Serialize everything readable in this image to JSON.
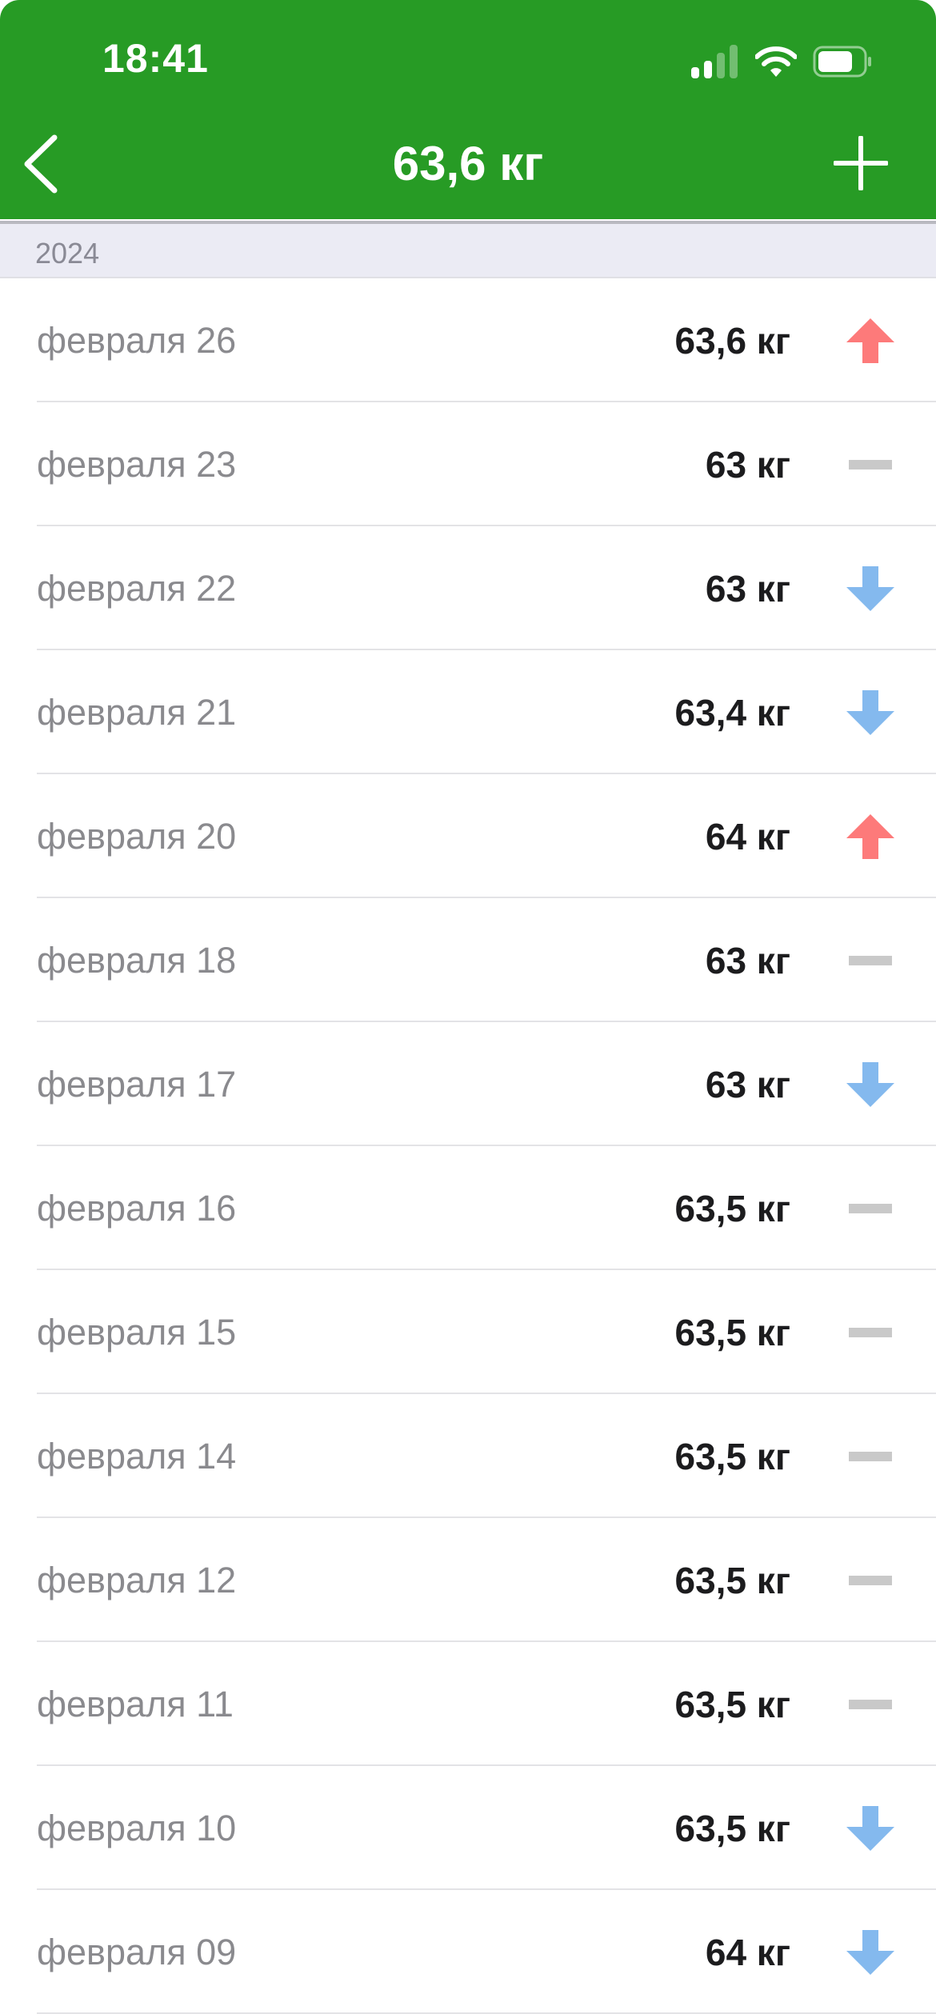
{
  "status_bar": {
    "time": "18:41"
  },
  "nav": {
    "title": "63,6 кг",
    "back_icon": "chevron-left-icon",
    "add_icon": "plus-icon"
  },
  "colors": {
    "header": "#279b25",
    "up": "#fd7a7a",
    "down": "#84b9ee",
    "same": "#c9c9c9"
  },
  "section": {
    "year": "2024"
  },
  "entries": [
    {
      "date": "февраля 26",
      "value": "63,6 кг",
      "trend": "up"
    },
    {
      "date": "февраля 23",
      "value": "63 кг",
      "trend": "same"
    },
    {
      "date": "февраля 22",
      "value": "63 кг",
      "trend": "down"
    },
    {
      "date": "февраля 21",
      "value": "63,4 кг",
      "trend": "down"
    },
    {
      "date": "февраля 20",
      "value": "64 кг",
      "trend": "up"
    },
    {
      "date": "февраля 18",
      "value": "63 кг",
      "trend": "same"
    },
    {
      "date": "февраля 17",
      "value": "63 кг",
      "trend": "down"
    },
    {
      "date": "февраля 16",
      "value": "63,5 кг",
      "trend": "same"
    },
    {
      "date": "февраля 15",
      "value": "63,5 кг",
      "trend": "same"
    },
    {
      "date": "февраля 14",
      "value": "63,5 кг",
      "trend": "same"
    },
    {
      "date": "февраля 12",
      "value": "63,5 кг",
      "trend": "same"
    },
    {
      "date": "февраля 11",
      "value": "63,5 кг",
      "trend": "same"
    },
    {
      "date": "февраля 10",
      "value": "63,5 кг",
      "trend": "down"
    },
    {
      "date": "февраля 09",
      "value": "64 кг",
      "trend": "down"
    }
  ]
}
